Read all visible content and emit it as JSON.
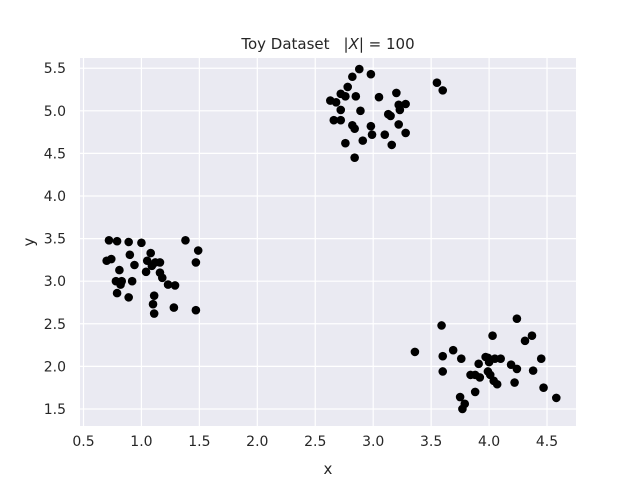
{
  "chart_data": {
    "type": "scatter",
    "title": "Toy Dataset   |X| = 100",
    "title_parts": {
      "main": "Toy Dataset",
      "math_left": "|",
      "math_var": "X",
      "math_right": "| = 100"
    },
    "xlabel": "x",
    "ylabel": "y",
    "xlim": [
      0.47,
      4.75
    ],
    "ylim": [
      1.3,
      5.62
    ],
    "xticks": [
      "0.5",
      "1.0",
      "1.5",
      "2.0",
      "2.5",
      "3.0",
      "3.5",
      "4.0",
      "4.5"
    ],
    "yticks": [
      "1.5",
      "2.0",
      "2.5",
      "3.0",
      "3.5",
      "4.0",
      "4.5",
      "5.0",
      "5.5"
    ],
    "grid": true,
    "legend": "none",
    "colors": {
      "background": "#eaeaf2",
      "grid": "#ffffff",
      "marker": "#000000",
      "text": "#262626"
    },
    "points": [
      [
        2.88,
        5.49
      ],
      [
        2.82,
        5.4
      ],
      [
        2.98,
        5.43
      ],
      [
        2.78,
        5.28
      ],
      [
        2.72,
        5.2
      ],
      [
        2.68,
        5.1
      ],
      [
        2.76,
        5.17
      ],
      [
        2.85,
        5.17
      ],
      [
        2.63,
        5.12
      ],
      [
        2.72,
        5.01
      ],
      [
        3.05,
        5.16
      ],
      [
        3.2,
        5.21
      ],
      [
        3.22,
        5.07
      ],
      [
        3.23,
        5.01
      ],
      [
        3.28,
        5.08
      ],
      [
        2.89,
        5.0
      ],
      [
        3.13,
        4.96
      ],
      [
        3.15,
        4.94
      ],
      [
        2.66,
        4.89
      ],
      [
        2.72,
        4.89
      ],
      [
        2.82,
        4.83
      ],
      [
        2.84,
        4.79
      ],
      [
        2.98,
        4.82
      ],
      [
        3.22,
        4.84
      ],
      [
        2.99,
        4.72
      ],
      [
        3.1,
        4.72
      ],
      [
        3.28,
        4.74
      ],
      [
        2.91,
        4.65
      ],
      [
        2.76,
        4.62
      ],
      [
        3.16,
        4.6
      ],
      [
        2.84,
        4.45
      ],
      [
        3.55,
        5.33
      ],
      [
        3.6,
        5.24
      ],
      [
        0.72,
        3.48
      ],
      [
        0.79,
        3.47
      ],
      [
        0.89,
        3.46
      ],
      [
        1.0,
        3.45
      ],
      [
        1.38,
        3.48
      ],
      [
        1.49,
        3.36
      ],
      [
        1.08,
        3.33
      ],
      [
        0.9,
        3.31
      ],
      [
        0.74,
        3.26
      ],
      [
        0.7,
        3.24
      ],
      [
        1.05,
        3.24
      ],
      [
        1.12,
        3.22
      ],
      [
        1.16,
        3.22
      ],
      [
        0.94,
        3.19
      ],
      [
        1.09,
        3.18
      ],
      [
        1.47,
        3.22
      ],
      [
        0.81,
        3.13
      ],
      [
        1.04,
        3.11
      ],
      [
        1.16,
        3.1
      ],
      [
        1.18,
        3.04
      ],
      [
        0.78,
        3.0
      ],
      [
        0.83,
        3.0
      ],
      [
        0.92,
        3.0
      ],
      [
        0.82,
        2.96
      ],
      [
        1.23,
        2.96
      ],
      [
        1.29,
        2.95
      ],
      [
        0.79,
        2.86
      ],
      [
        0.89,
        2.81
      ],
      [
        1.11,
        2.83
      ],
      [
        1.1,
        2.73
      ],
      [
        1.28,
        2.69
      ],
      [
        1.47,
        2.66
      ],
      [
        1.11,
        2.62
      ],
      [
        4.24,
        2.56
      ],
      [
        3.59,
        2.48
      ],
      [
        4.03,
        2.36
      ],
      [
        4.37,
        2.36
      ],
      [
        4.31,
        2.3
      ],
      [
        3.36,
        2.17
      ],
      [
        3.69,
        2.19
      ],
      [
        3.6,
        2.12
      ],
      [
        3.76,
        2.09
      ],
      [
        3.97,
        2.11
      ],
      [
        3.99,
        2.1
      ],
      [
        4.05,
        2.09
      ],
      [
        4.1,
        2.09
      ],
      [
        4.45,
        2.09
      ],
      [
        4.0,
        2.05
      ],
      [
        3.91,
        2.03
      ],
      [
        4.19,
        2.02
      ],
      [
        4.24,
        1.97
      ],
      [
        4.38,
        1.95
      ],
      [
        3.6,
        1.94
      ],
      [
        3.99,
        1.94
      ],
      [
        3.84,
        1.9
      ],
      [
        3.88,
        1.9
      ],
      [
        4.01,
        1.9
      ],
      [
        3.92,
        1.87
      ],
      [
        4.04,
        1.83
      ],
      [
        4.07,
        1.79
      ],
      [
        4.22,
        1.81
      ],
      [
        4.47,
        1.75
      ],
      [
        3.88,
        1.7
      ],
      [
        3.75,
        1.64
      ],
      [
        4.58,
        1.63
      ],
      [
        3.79,
        1.56
      ],
      [
        3.77,
        1.5
      ]
    ]
  }
}
